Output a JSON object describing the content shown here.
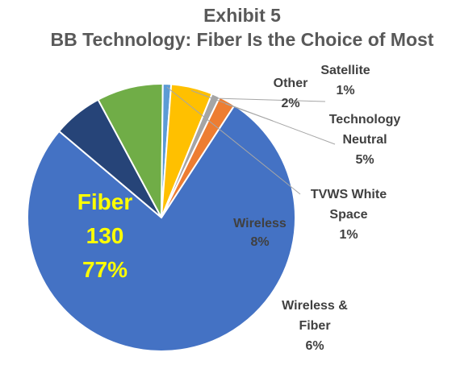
{
  "chart_data": {
    "type": "pie",
    "title": "Exhibit 5",
    "subtitle": "BB Technology: Fiber Is the Choice of Most",
    "slices": [
      {
        "name": "Fiber",
        "value": 77,
        "count": "130",
        "percent_label": "77%",
        "color": "#4472C4",
        "label_color": "#FFFF00"
      },
      {
        "name": "Wireless & Fiber",
        "value": 6,
        "percent_label": "6%",
        "color": "#264478",
        "label_color": "#404040"
      },
      {
        "name": "Wireless",
        "value": 8,
        "percent_label": "8%",
        "color": "#70AD47",
        "label_color": "#404040"
      },
      {
        "name": "TVWS White Space",
        "value": 1,
        "percent_label": "1%",
        "color": "#5B9BD5",
        "label_color": "#404040"
      },
      {
        "name": "Technology Neutral",
        "value": 5,
        "percent_label": "5%",
        "color": "#FFC000",
        "label_color": "#404040"
      },
      {
        "name": "Satellite",
        "value": 1,
        "percent_label": "1%",
        "color": "#A5A5A5",
        "label_color": "#404040"
      },
      {
        "name": "Other",
        "value": 2,
        "percent_label": "2%",
        "color": "#ED7D31",
        "label_color": "#404040"
      }
    ]
  },
  "labels": {
    "fiber": {
      "name": "Fiber",
      "count": "130",
      "percent": "77%"
    },
    "wireless_fiber": {
      "line1": "Wireless &",
      "line2": "Fiber",
      "percent": "6%"
    },
    "wireless": {
      "name": "Wireless",
      "percent": "8%"
    },
    "tvws": {
      "line1": "TVWS White",
      "line2": "Space",
      "percent": "1%"
    },
    "tech_neutral": {
      "line1": "Technology",
      "line2": "Neutral",
      "percent": "5%"
    },
    "satellite": {
      "name": "Satellite",
      "percent": "1%"
    },
    "other": {
      "name": "Other",
      "percent": "2%"
    }
  }
}
